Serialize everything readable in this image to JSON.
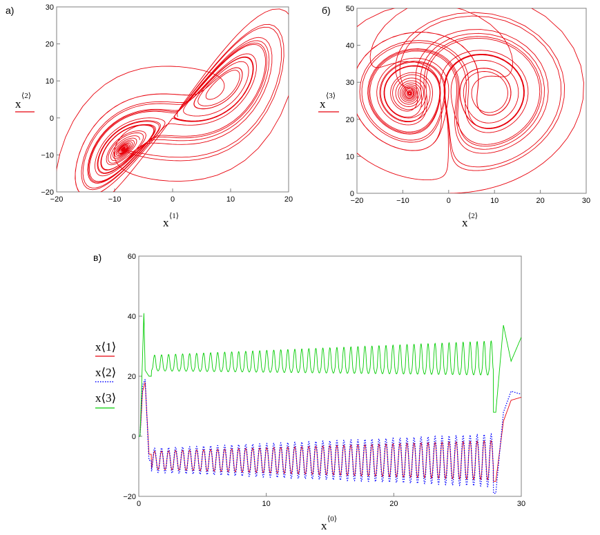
{
  "chart_data": [
    {
      "type": "line",
      "panel_label": "а)",
      "xlabel": "x",
      "xlabel_sup": "⟨1⟩",
      "ylabel": "x",
      "ylabel_sup": "⟨2⟩",
      "xlim": [
        -20,
        20
      ],
      "ylim": [
        -20,
        30
      ],
      "xticks": [
        -20,
        -10,
        0,
        10,
        20
      ],
      "yticks": [
        -20,
        -10,
        0,
        10,
        20,
        30
      ],
      "grid": false,
      "legend": "left",
      "series": [
        {
          "name": "",
          "color": "#e8000b",
          "style": "solid",
          "projection": "x1-x2",
          "description_x": [
            0.5,
            1.5,
            5,
            12,
            15,
            17,
            18,
            14,
            3,
            -5,
            -8,
            -10,
            -8,
            -6
          ],
          "description_y": [
            1,
            3,
            12,
            20,
            24,
            20,
            10,
            -5,
            -7,
            -5,
            -8,
            -10,
            -7,
            -6
          ]
        }
      ]
    },
    {
      "type": "line",
      "panel_label": "б)",
      "xlabel": "x",
      "xlabel_sup": "⟨2⟩",
      "ylabel": "x",
      "ylabel_sup": "⟨3⟩",
      "xlim": [
        -20,
        30
      ],
      "ylim": [
        0,
        50
      ],
      "xticks": [
        -20,
        -10,
        0,
        10,
        20,
        30
      ],
      "yticks": [
        0,
        10,
        20,
        30,
        40,
        50
      ],
      "grid": false,
      "legend": "left",
      "series": [
        {
          "name": "",
          "color": "#e8000b",
          "style": "solid",
          "projection": "x2-x3",
          "description_x": [
            1,
            10,
            20,
            24,
            20,
            10,
            3,
            -3,
            -8,
            -10,
            -8
          ],
          "description_y": [
            0,
            3,
            12,
            23,
            38,
            42,
            35,
            25,
            28,
            23,
            24
          ]
        }
      ]
    },
    {
      "type": "line",
      "panel_label": "в)",
      "xlabel": "x",
      "xlabel_sup": "⟨0⟩",
      "xlim": [
        0,
        30
      ],
      "ylim": [
        -20,
        60
      ],
      "xticks": [
        0,
        10,
        20,
        30
      ],
      "yticks": [
        -20,
        0,
        20,
        40,
        60
      ],
      "grid": false,
      "legend": "left",
      "series": [
        {
          "name": "x⟨1⟩",
          "color": "#e8000b",
          "style": "solid",
          "peaks_t": [
            0.1,
            0.3,
            0.5,
            0.8,
            28.0,
            28.6,
            29.2,
            30.0
          ],
          "peaks_v": [
            0,
            15,
            18,
            -6,
            -15,
            5,
            12,
            13
          ],
          "baseline": -8,
          "oscillation_amplitude": 3,
          "oscillation_period": 0.55
        },
        {
          "name": "x⟨2⟩",
          "color": "#0000ff",
          "style": "dotted",
          "peaks_t": [
            0.1,
            0.3,
            0.5,
            0.8,
            28.0,
            28.6,
            29.2,
            30.0
          ],
          "peaks_v": [
            0,
            17,
            19,
            -8,
            -19,
            8,
            15,
            14
          ],
          "baseline": -8,
          "oscillation_amplitude": 4,
          "oscillation_period": 0.55
        },
        {
          "name": "x⟨3⟩",
          "color": "#00cc00",
          "style": "solid",
          "peaks_t": [
            0.1,
            0.4,
            0.5,
            0.8,
            28.0,
            28.6,
            29.2,
            30.0
          ],
          "peaks_v": [
            0,
            41,
            22,
            20,
            8,
            37,
            25,
            33
          ],
          "baseline": 23,
          "oscillation_amplitude": 4,
          "oscillation_period": 0.55
        }
      ]
    }
  ]
}
